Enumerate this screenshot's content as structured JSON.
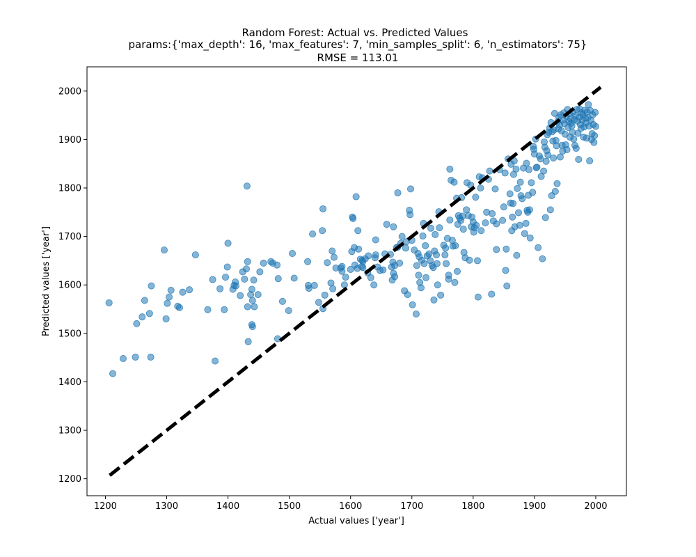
{
  "chart_data": {
    "type": "scatter",
    "title": "Random Forest: Actual vs. Predicted Values",
    "subtitle": "params:{'max_depth': 16, 'max_features': 7, 'min_samples_split': 6, 'n_estimators': 75}",
    "metric": "RMSE = 113.01",
    "xlabel": "Actual values ['year']",
    "ylabel": "Predicted values ['year']",
    "xlim": [
      1170,
      2050
    ],
    "ylim": [
      1165,
      2050
    ],
    "xticks": [
      "1200",
      "1300",
      "1400",
      "1500",
      "1600",
      "1700",
      "1800",
      "1900",
      "2000"
    ],
    "yticks": [
      "1200",
      "1300",
      "1400",
      "1500",
      "1600",
      "1700",
      "1800",
      "1900",
      "2000"
    ],
    "grid": false,
    "point_color": "#1f77b4",
    "point_alpha": 0.55,
    "reference_line": {
      "x": [
        1207,
        2008
      ],
      "y": [
        1207,
        2008
      ],
      "color": "#000000",
      "style": "dashed"
    },
    "points": [
      [
        1206,
        1563
      ],
      [
        1212,
        1417
      ],
      [
        1229,
        1448
      ],
      [
        1249,
        1451
      ],
      [
        1251,
        1520
      ],
      [
        1260,
        1534
      ],
      [
        1264,
        1568
      ],
      [
        1272,
        1541
      ],
      [
        1274,
        1451
      ],
      [
        1275,
        1598
      ],
      [
        1296,
        1672
      ],
      [
        1299,
        1530
      ],
      [
        1301,
        1562
      ],
      [
        1304,
        1575
      ],
      [
        1307,
        1589
      ],
      [
        1318,
        1556
      ],
      [
        1321,
        1553
      ],
      [
        1326,
        1585
      ],
      [
        1337,
        1590
      ],
      [
        1347,
        1662
      ],
      [
        1367,
        1549
      ],
      [
        1375,
        1611
      ],
      [
        1379,
        1443
      ],
      [
        1387,
        1592
      ],
      [
        1394,
        1549
      ],
      [
        1396,
        1616
      ],
      [
        1399,
        1637
      ],
      [
        1400,
        1686
      ],
      [
        1408,
        1591
      ],
      [
        1410,
        1599
      ],
      [
        1412,
        1606
      ],
      [
        1413,
        1598
      ],
      [
        1420,
        1578
      ],
      [
        1424,
        1627
      ],
      [
        1427,
        1612
      ],
      [
        1430,
        1633
      ],
      [
        1431,
        1804
      ],
      [
        1432,
        1648
      ],
      [
        1432,
        1555
      ],
      [
        1433,
        1483
      ],
      [
        1437,
        1580
      ],
      [
        1439,
        1591
      ],
      [
        1439,
        1518
      ],
      [
        1440,
        1514
      ],
      [
        1440,
        1568
      ],
      [
        1442,
        1610
      ],
      [
        1443,
        1555
      ],
      [
        1449,
        1580
      ],
      [
        1452,
        1627
      ],
      [
        1458,
        1645
      ],
      [
        1470,
        1648
      ],
      [
        1473,
        1645
      ],
      [
        1480,
        1641
      ],
      [
        1481,
        1489
      ],
      [
        1482,
        1613
      ],
      [
        1489,
        1566
      ],
      [
        1499,
        1547
      ],
      [
        1505,
        1665
      ],
      [
        1508,
        1614
      ],
      [
        1530,
        1648
      ],
      [
        1531,
        1599
      ],
      [
        1532,
        1593
      ],
      [
        1538,
        1705
      ],
      [
        1541,
        1599
      ],
      [
        1548,
        1564
      ],
      [
        1554,
        1712
      ],
      [
        1555,
        1551
      ],
      [
        1555,
        1757
      ],
      [
        1558,
        1579
      ],
      [
        1562,
        1646
      ],
      [
        1568,
        1604
      ],
      [
        1570,
        1670
      ],
      [
        1571,
        1592
      ],
      [
        1573,
        1657
      ],
      [
        1576,
        1635
      ],
      [
        1584,
        1635
      ],
      [
        1586,
        1628
      ],
      [
        1586,
        1638
      ],
      [
        1590,
        1600
      ],
      [
        1592,
        1616
      ],
      [
        1600,
        1632
      ],
      [
        1602,
        1669
      ],
      [
        1603,
        1740
      ],
      [
        1604,
        1737
      ],
      [
        1606,
        1677
      ],
      [
        1607,
        1641
      ],
      [
        1609,
        1782
      ],
      [
        1611,
        1634
      ],
      [
        1612,
        1712
      ],
      [
        1613,
        1674
      ],
      [
        1616,
        1653
      ],
      [
        1618,
        1638
      ],
      [
        1619,
        1651
      ],
      [
        1620,
        1636
      ],
      [
        1620,
        1648
      ],
      [
        1624,
        1654
      ],
      [
        1628,
        1625
      ],
      [
        1629,
        1660
      ],
      [
        1633,
        1615
      ],
      [
        1638,
        1600
      ],
      [
        1640,
        1656
      ],
      [
        1641,
        1662
      ],
      [
        1641,
        1693
      ],
      [
        1644,
        1637
      ],
      [
        1648,
        1630
      ],
      [
        1653,
        1631
      ],
      [
        1656,
        1664
      ],
      [
        1659,
        1725
      ],
      [
        1665,
        1663
      ],
      [
        1667,
        1637
      ],
      [
        1668,
        1610
      ],
      [
        1669,
        1647
      ],
      [
        1670,
        1624
      ],
      [
        1670,
        1720
      ],
      [
        1672,
        1617
      ],
      [
        1672,
        1640
      ],
      [
        1675,
        1677
      ],
      [
        1677,
        1790
      ],
      [
        1677,
        1678
      ],
      [
        1680,
        1645
      ],
      [
        1682,
        1686
      ],
      [
        1684,
        1700
      ],
      [
        1688,
        1588
      ],
      [
        1690,
        1676
      ],
      [
        1691,
        1689
      ],
      [
        1693,
        1580
      ],
      [
        1696,
        1754
      ],
      [
        1697,
        1745
      ],
      [
        1698,
        1798
      ],
      [
        1700,
        1692
      ],
      [
        1701,
        1559
      ],
      [
        1704,
        1672
      ],
      [
        1707,
        1540
      ],
      [
        1708,
        1640
      ],
      [
        1710,
        1665
      ],
      [
        1711,
        1620
      ],
      [
        1712,
        1658
      ],
      [
        1713,
        1605
      ],
      [
        1715,
        1594
      ],
      [
        1716,
        1651
      ],
      [
        1718,
        1701
      ],
      [
        1719,
        1727
      ],
      [
        1720,
        1644
      ],
      [
        1722,
        1681
      ],
      [
        1723,
        1615
      ],
      [
        1725,
        1660
      ],
      [
        1728,
        1664
      ],
      [
        1730,
        1650
      ],
      [
        1731,
        1717
      ],
      [
        1733,
        1640
      ],
      [
        1735,
        1636
      ],
      [
        1736,
        1569
      ],
      [
        1737,
        1670
      ],
      [
        1738,
        1704
      ],
      [
        1740,
        1662
      ],
      [
        1741,
        1644
      ],
      [
        1742,
        1600
      ],
      [
        1744,
        1751
      ],
      [
        1745,
        1718
      ],
      [
        1747,
        1579
      ],
      [
        1752,
        1682
      ],
      [
        1754,
        1662
      ],
      [
        1755,
        1676
      ],
      [
        1756,
        1644
      ],
      [
        1758,
        1696
      ],
      [
        1760,
        1612
      ],
      [
        1760,
        1620
      ],
      [
        1762,
        1734
      ],
      [
        1762,
        1839
      ],
      [
        1764,
        1816
      ],
      [
        1766,
        1692
      ],
      [
        1767,
        1680
      ],
      [
        1769,
        1812
      ],
      [
        1770,
        1605
      ],
      [
        1771,
        1681
      ],
      [
        1773,
        1779
      ],
      [
        1774,
        1628
      ],
      [
        1775,
        1725
      ],
      [
        1776,
        1743
      ],
      [
        1778,
        1738
      ],
      [
        1780,
        1733
      ],
      [
        1781,
        1780
      ],
      [
        1783,
        1742
      ],
      [
        1784,
        1715
      ],
      [
        1785,
        1667
      ],
      [
        1787,
        1656
      ],
      [
        1789,
        1755
      ],
      [
        1790,
        1811
      ],
      [
        1792,
        1743
      ],
      [
        1794,
        1651
      ],
      [
        1796,
        1806
      ],
      [
        1797,
        1720
      ],
      [
        1798,
        1740
      ],
      [
        1800,
        1730
      ],
      [
        1801,
        1709
      ],
      [
        1802,
        1718
      ],
      [
        1804,
        1781
      ],
      [
        1805,
        1723
      ],
      [
        1807,
        1650
      ],
      [
        1808,
        1575
      ],
      [
        1810,
        1823
      ],
      [
        1812,
        1800
      ],
      [
        1813,
        1712
      ],
      [
        1815,
        1821
      ],
      [
        1820,
        1728
      ],
      [
        1822,
        1750
      ],
      [
        1825,
        1818
      ],
      [
        1827,
        1835
      ],
      [
        1830,
        1581
      ],
      [
        1831,
        1747
      ],
      [
        1833,
        1732
      ],
      [
        1836,
        1798
      ],
      [
        1838,
        1673
      ],
      [
        1838,
        1726
      ],
      [
        1843,
        1838
      ],
      [
        1848,
        1733
      ],
      [
        1850,
        1761
      ],
      [
        1852,
        1831
      ],
      [
        1853,
        1630
      ],
      [
        1854,
        1674
      ],
      [
        1855,
        1598
      ],
      [
        1857,
        1860
      ],
      [
        1860,
        1788
      ],
      [
        1861,
        1769
      ],
      [
        1862,
        1849
      ],
      [
        1863,
        1712
      ],
      [
        1864,
        1740
      ],
      [
        1865,
        1768
      ],
      [
        1866,
        1828
      ],
      [
        1867,
        1856
      ],
      [
        1868,
        1720
      ],
      [
        1870,
        1839
      ],
      [
        1871,
        1661
      ],
      [
        1872,
        1799
      ],
      [
        1874,
        1749
      ],
      [
        1876,
        1723
      ],
      [
        1877,
        1812
      ],
      [
        1878,
        1784
      ],
      [
        1880,
        1778
      ],
      [
        1882,
        1841
      ],
      [
        1884,
        1706
      ],
      [
        1886,
        1727
      ],
      [
        1887,
        1851
      ],
      [
        1888,
        1754
      ],
      [
        1889,
        1750
      ],
      [
        1890,
        1785
      ],
      [
        1891,
        1838
      ],
      [
        1892,
        1755
      ],
      [
        1893,
        1697
      ],
      [
        1895,
        1811
      ],
      [
        1897,
        1791
      ],
      [
        1898,
        1886
      ],
      [
        1899,
        1880
      ],
      [
        1900,
        1870
      ],
      [
        1902,
        1901
      ],
      [
        1903,
        1842
      ],
      [
        1904,
        1843
      ],
      [
        1906,
        1677
      ],
      [
        1908,
        1866
      ],
      [
        1910,
        1860
      ],
      [
        1911,
        1824
      ],
      [
        1913,
        1654
      ],
      [
        1915,
        1835
      ],
      [
        1916,
        1895
      ],
      [
        1917,
        1884
      ],
      [
        1918,
        1739
      ],
      [
        1919,
        1855
      ],
      [
        1920,
        1877
      ],
      [
        1921,
        1910
      ],
      [
        1922,
        1868
      ],
      [
        1923,
        1915
      ],
      [
        1925,
        1924
      ],
      [
        1926,
        1755
      ],
      [
        1927,
        1935
      ],
      [
        1928,
        1784
      ],
      [
        1929,
        1916
      ],
      [
        1930,
        1897
      ],
      [
        1931,
        1862
      ],
      [
        1932,
        1920
      ],
      [
        1933,
        1954
      ],
      [
        1934,
        1793
      ],
      [
        1935,
        1898
      ],
      [
        1936,
        1887
      ],
      [
        1937,
        1809
      ],
      [
        1938,
        1937
      ],
      [
        1939,
        1922
      ],
      [
        1940,
        1946
      ],
      [
        1941,
        1930
      ],
      [
        1942,
        1864
      ],
      [
        1943,
        1951
      ],
      [
        1944,
        1918
      ],
      [
        1945,
        1888
      ],
      [
        1946,
        1876
      ],
      [
        1947,
        1940
      ],
      [
        1948,
        1955
      ],
      [
        1949,
        1933
      ],
      [
        1950,
        1911
      ],
      [
        1951,
        1889
      ],
      [
        1952,
        1948
      ],
      [
        1953,
        1879
      ],
      [
        1954,
        1962
      ],
      [
        1955,
        1925
      ],
      [
        1956,
        1937
      ],
      [
        1957,
        1953
      ],
      [
        1958,
        1905
      ],
      [
        1959,
        1943
      ],
      [
        1960,
        1934
      ],
      [
        1961,
        1928
      ],
      [
        1962,
        1915
      ],
      [
        1963,
        1957
      ],
      [
        1964,
        1901
      ],
      [
        1965,
        1941
      ],
      [
        1966,
        1888
      ],
      [
        1967,
        1949
      ],
      [
        1968,
        1882
      ],
      [
        1969,
        1962
      ],
      [
        1970,
        1938
      ],
      [
        1971,
        1913
      ],
      [
        1972,
        1859
      ],
      [
        1973,
        1946
      ],
      [
        1974,
        1963
      ],
      [
        1975,
        1931
      ],
      [
        1976,
        1923
      ],
      [
        1977,
        1955
      ],
      [
        1978,
        1940
      ],
      [
        1979,
        1951
      ],
      [
        1980,
        1905
      ],
      [
        1981,
        1926
      ],
      [
        1982,
        1960
      ],
      [
        1983,
        1944
      ],
      [
        1984,
        1934
      ],
      [
        1985,
        1903
      ],
      [
        1986,
        1957
      ],
      [
        1987,
        1945
      ],
      [
        1988,
        1972
      ],
      [
        1989,
        1928
      ],
      [
        1990,
        1856
      ],
      [
        1991,
        1960
      ],
      [
        1992,
        1940
      ],
      [
        1993,
        1900
      ],
      [
        1994,
        1912
      ],
      [
        1995,
        1951
      ],
      [
        1996,
        1931
      ],
      [
        1997,
        1894
      ],
      [
        1998,
        1908
      ],
      [
        1999,
        1956
      ],
      [
        2000,
        1927
      ]
    ]
  }
}
